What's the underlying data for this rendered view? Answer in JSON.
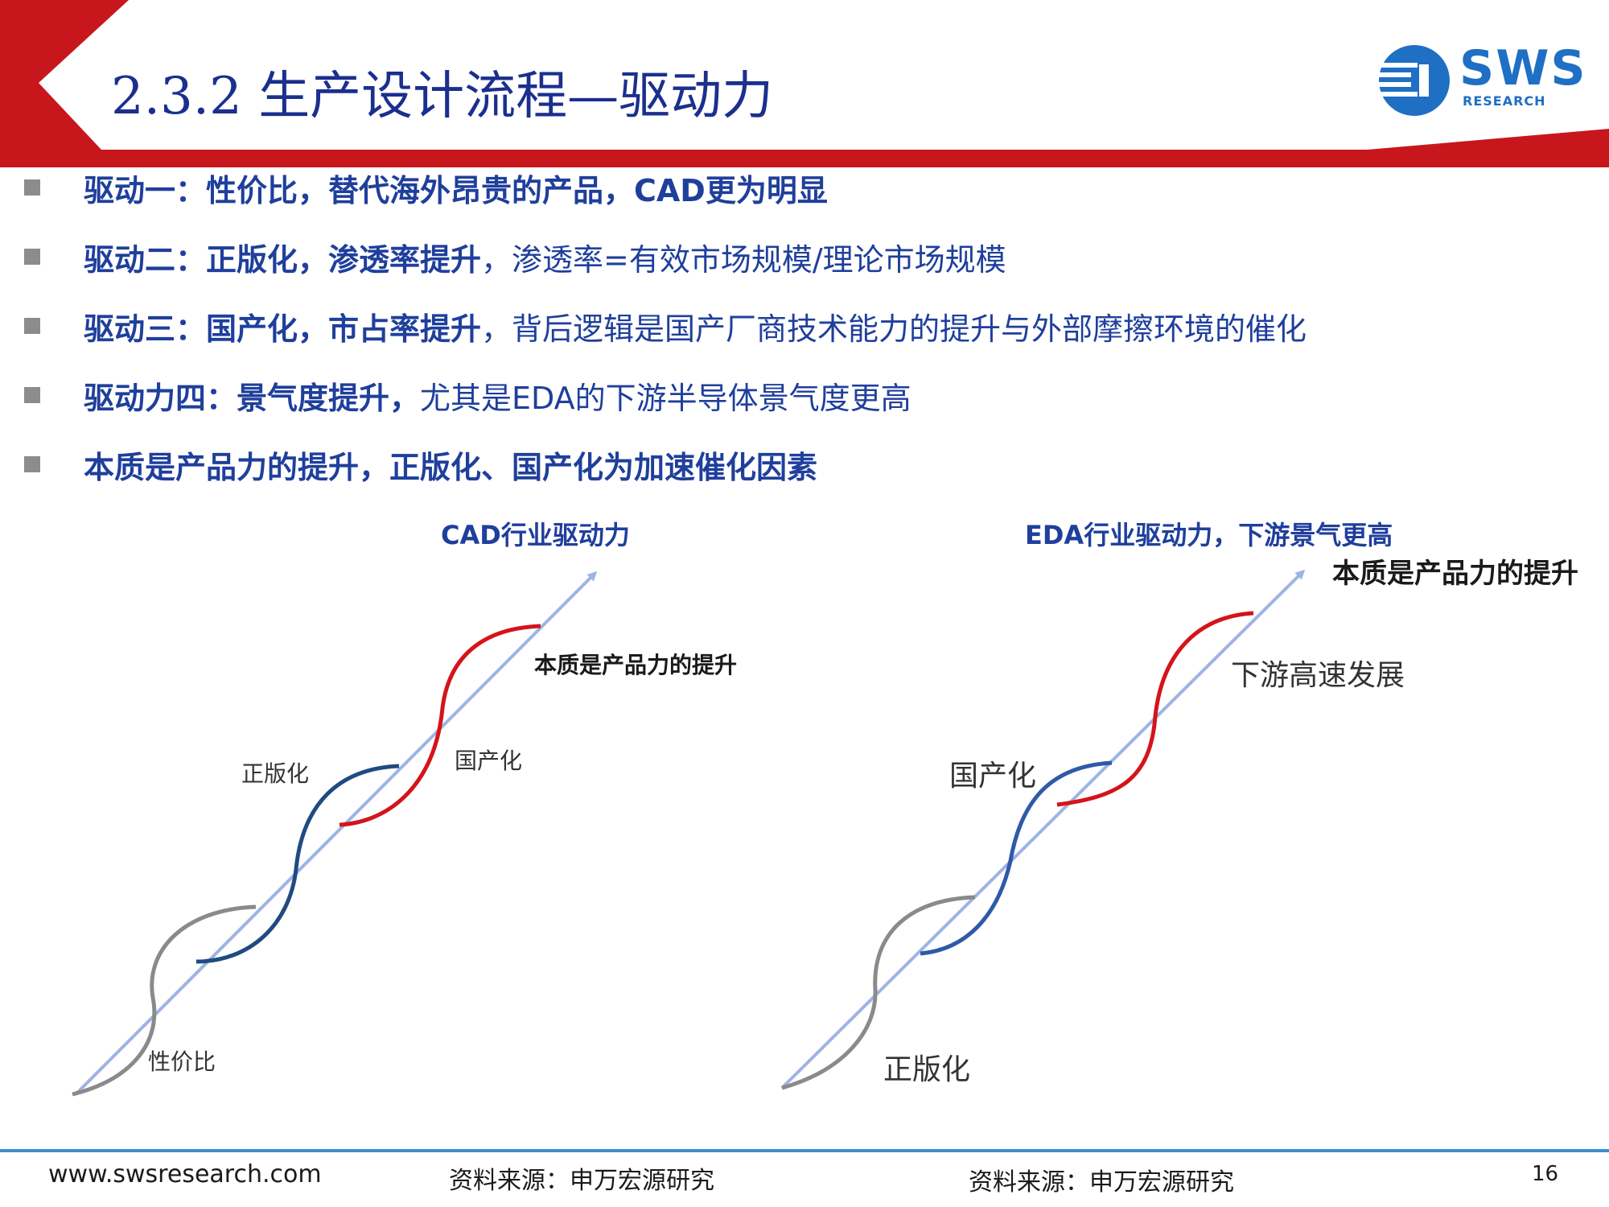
{
  "header": {
    "title": "2.3.2 生产设计流程—驱动力",
    "logo": {
      "text": "SWS",
      "subtext": "RESEARCH",
      "icon": "sws-globe-icon",
      "brand_color": "#1f6fc4"
    },
    "accent_color": "#c8161d"
  },
  "bullets": [
    {
      "bold": "驱动一：性价比，替代海外昂贵的产品，CAD更为明显",
      "normal": ""
    },
    {
      "bold": "驱动二：正版化，渗透率提升",
      "normal": "，渗透率=有效市场规模/理论市场规模"
    },
    {
      "bold": "驱动三：国产化，市占率提升",
      "normal": "，背后逻辑是国产厂商技术能力的提升与外部摩擦环境的催化"
    },
    {
      "bold": "驱动力四：景气度提升，",
      "normal": "尤其是EDA的下游半导体景气度更高"
    },
    {
      "bold": "本质是产品力的提升，正版化、国产化为加速催化因素",
      "normal": ""
    }
  ],
  "diagrams": {
    "cad": {
      "title": "CAD行业驱动力",
      "stage1": "性价比",
      "stage2": "正版化",
      "stage3": "国产化",
      "goal": "本质是产品力的提升"
    },
    "eda": {
      "title": "EDA行业驱动力，下游景气更高",
      "stage1": "正版化",
      "stage2": "国产化",
      "stage3": "下游高速发展",
      "goal": "本质是产品力的提升"
    },
    "colors": {
      "arrow": "#9db4e4",
      "gray": "#8a8a8a",
      "navy": "#1f4b82",
      "blue": "#2e5aa8",
      "red": "#d4141b"
    }
  },
  "footer": {
    "website": "www.swsresearch.com",
    "source_left": "资料来源：申万宏源研究",
    "source_right": "资料来源：申万宏源研究",
    "page_number": "16"
  }
}
